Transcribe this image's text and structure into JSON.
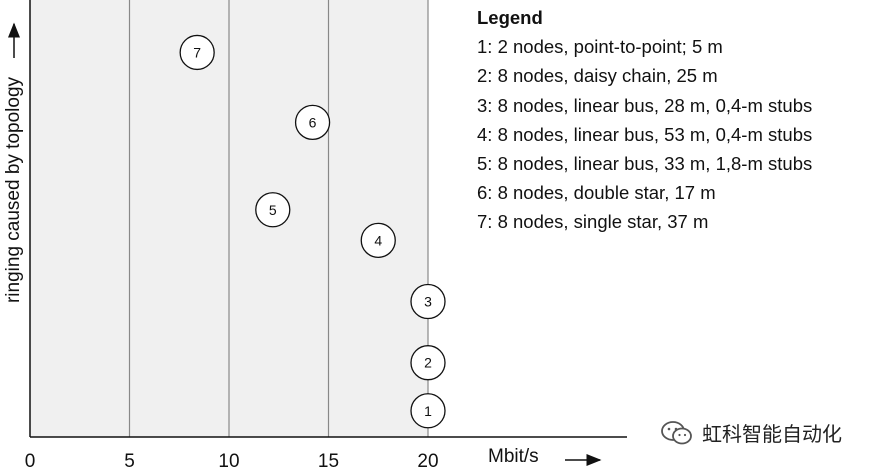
{
  "chart_data": {
    "type": "scatter",
    "xlabel": "Mbit/s",
    "ylabel": "ringing caused by topology",
    "xlim": [
      0,
      20
    ],
    "x_ticks": [
      "0",
      "5",
      "10",
      "15",
      "20"
    ],
    "grid_x": [
      5,
      10,
      15,
      20
    ],
    "points": [
      {
        "label": "1",
        "x": 20,
        "y": 0.06
      },
      {
        "label": "2",
        "x": 20,
        "y": 0.17
      },
      {
        "label": "3",
        "x": 20,
        "y": 0.31
      },
      {
        "label": "4",
        "x": 17.5,
        "y": 0.45
      },
      {
        "label": "5",
        "x": 12.2,
        "y": 0.52
      },
      {
        "label": "6",
        "x": 14.2,
        "y": 0.72
      },
      {
        "label": "7",
        "x": 8.4,
        "y": 0.88
      }
    ],
    "legend": {
      "title": "Legend",
      "entries": [
        "1: 2 nodes, point-to-point; 5 m",
        "2: 8 nodes, daisy chain, 25 m",
        "3: 8 nodes, linear bus, 28 m, 0,4-m stubs",
        "4: 8 nodes, linear bus, 53 m, 0,4-m stubs",
        "5: 8 nodes, linear bus, 33 m, 1,8-m stubs",
        "6: 8 nodes, double star, 17 m",
        "7: 8 nodes, single star, 37 m"
      ]
    },
    "colors": {
      "shaded_region": "#f0f0f0",
      "grid": "#888888",
      "axis": "#111111"
    }
  },
  "watermark": "虹科智能自动化"
}
